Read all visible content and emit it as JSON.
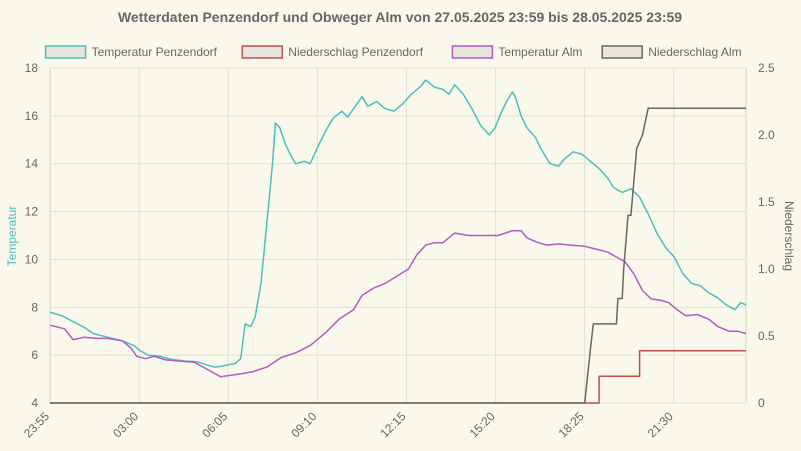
{
  "chart_data": {
    "type": "line",
    "title": "Wetterdaten Penzendorf und Obweger Alm von 27.05.2025 23:59 bis 28.05.2025 23:59",
    "y_left": {
      "label": "Temperatur",
      "range": [
        4,
        18
      ],
      "ticks": [
        "4",
        "6",
        "8",
        "10",
        "12",
        "14",
        "16",
        "18"
      ],
      "values": [
        4,
        6,
        8,
        10,
        12,
        14,
        16,
        18
      ],
      "color": "#4bc0c0"
    },
    "y_right": {
      "label": "Niederschlag",
      "range": [
        0,
        2.5
      ],
      "ticks": [
        "0",
        "0.5",
        "1.0",
        "1.5",
        "2.0",
        "2.5"
      ],
      "values": [
        0,
        0.5,
        1.0,
        1.5,
        2.0,
        2.5
      ],
      "color": "#666666"
    },
    "x_ticks": [
      {
        "label": "23:55",
        "hour": 0
      },
      {
        "label": "03:00",
        "hour": 3.083
      },
      {
        "label": "06:05",
        "hour": 6.167
      },
      {
        "label": "09:10",
        "hour": 9.25
      },
      {
        "label": "12:15",
        "hour": 12.333
      },
      {
        "label": "15:20",
        "hour": 15.417
      },
      {
        "label": "18:25",
        "hour": 18.5
      },
      {
        "label": "21:30",
        "hour": 21.583
      }
    ],
    "x_range_hours": [
      0,
      24.083
    ],
    "grid": true,
    "legend_position": "top",
    "series": [
      {
        "name": "Temperatur Penzendorf",
        "axis": "left",
        "color": "#4bc0c0",
        "fill": "#e6e6dc",
        "points": [
          [
            0.0,
            7.8
          ],
          [
            0.4,
            7.65
          ],
          [
            0.8,
            7.4
          ],
          [
            1.2,
            7.15
          ],
          [
            1.5,
            6.9
          ],
          [
            2.0,
            6.75
          ],
          [
            2.5,
            6.6
          ],
          [
            2.9,
            6.4
          ],
          [
            3.1,
            6.2
          ],
          [
            3.4,
            6.0
          ],
          [
            3.8,
            5.95
          ],
          [
            4.2,
            5.82
          ],
          [
            4.7,
            5.75
          ],
          [
            5.1,
            5.72
          ],
          [
            5.4,
            5.6
          ],
          [
            5.7,
            5.5
          ],
          [
            6.0,
            5.55
          ],
          [
            6.2,
            5.6
          ],
          [
            6.4,
            5.65
          ],
          [
            6.6,
            5.85
          ],
          [
            6.75,
            7.3
          ],
          [
            6.95,
            7.2
          ],
          [
            7.1,
            7.6
          ],
          [
            7.3,
            9.0
          ],
          [
            7.5,
            11.5
          ],
          [
            7.7,
            14.0
          ],
          [
            7.8,
            15.7
          ],
          [
            7.95,
            15.5
          ],
          [
            8.15,
            14.8
          ],
          [
            8.35,
            14.3
          ],
          [
            8.5,
            14.0
          ],
          [
            8.8,
            14.1
          ],
          [
            9.0,
            14.0
          ],
          [
            9.3,
            14.8
          ],
          [
            9.6,
            15.5
          ],
          [
            9.8,
            15.9
          ],
          [
            10.1,
            16.2
          ],
          [
            10.3,
            15.95
          ],
          [
            10.5,
            16.3
          ],
          [
            10.8,
            16.8
          ],
          [
            11.0,
            16.4
          ],
          [
            11.3,
            16.6
          ],
          [
            11.6,
            16.3
          ],
          [
            11.9,
            16.2
          ],
          [
            12.2,
            16.5
          ],
          [
            12.5,
            16.9
          ],
          [
            12.8,
            17.2
          ],
          [
            13.0,
            17.5
          ],
          [
            13.3,
            17.2
          ],
          [
            13.6,
            17.1
          ],
          [
            13.8,
            16.9
          ],
          [
            14.0,
            17.3
          ],
          [
            14.3,
            16.9
          ],
          [
            14.6,
            16.3
          ],
          [
            14.9,
            15.6
          ],
          [
            15.2,
            15.2
          ],
          [
            15.4,
            15.5
          ],
          [
            15.6,
            16.1
          ],
          [
            15.8,
            16.6
          ],
          [
            16.0,
            17.0
          ],
          [
            16.1,
            16.8
          ],
          [
            16.3,
            16.0
          ],
          [
            16.5,
            15.5
          ],
          [
            16.8,
            15.1
          ],
          [
            17.0,
            14.6
          ],
          [
            17.3,
            14.0
          ],
          [
            17.6,
            13.9
          ],
          [
            17.8,
            14.2
          ],
          [
            18.1,
            14.5
          ],
          [
            18.4,
            14.4
          ],
          [
            18.7,
            14.1
          ],
          [
            19.0,
            13.8
          ],
          [
            19.3,
            13.4
          ],
          [
            19.5,
            13.0
          ],
          [
            19.8,
            12.8
          ],
          [
            20.1,
            12.95
          ],
          [
            20.4,
            12.6
          ],
          [
            20.7,
            11.9
          ],
          [
            21.0,
            11.1
          ],
          [
            21.3,
            10.5
          ],
          [
            21.6,
            10.1
          ],
          [
            21.9,
            9.4
          ],
          [
            22.2,
            9.0
          ],
          [
            22.5,
            8.9
          ],
          [
            22.8,
            8.6
          ],
          [
            23.1,
            8.4
          ],
          [
            23.4,
            8.1
          ],
          [
            23.7,
            7.9
          ],
          [
            23.9,
            8.2
          ],
          [
            24.083,
            8.1
          ]
        ]
      },
      {
        "name": "Niederschlag Penzendorf",
        "axis": "right",
        "color": "#c0504d",
        "fill": "#e6e6dc",
        "points": [
          [
            0.0,
            0
          ],
          [
            19.0,
            0
          ],
          [
            19.0,
            0.2
          ],
          [
            20.4,
            0.2
          ],
          [
            20.4,
            0.39
          ],
          [
            24.083,
            0.39
          ]
        ]
      },
      {
        "name": "Temperatur Alm",
        "axis": "left",
        "color": "#b05cc6",
        "fill": "#e6e6dc",
        "points": [
          [
            0.0,
            7.25
          ],
          [
            0.5,
            7.1
          ],
          [
            0.8,
            6.65
          ],
          [
            1.2,
            6.75
          ],
          [
            1.6,
            6.7
          ],
          [
            2.0,
            6.7
          ],
          [
            2.5,
            6.6
          ],
          [
            2.8,
            6.3
          ],
          [
            3.0,
            5.95
          ],
          [
            3.3,
            5.85
          ],
          [
            3.6,
            5.95
          ],
          [
            4.0,
            5.8
          ],
          [
            4.5,
            5.75
          ],
          [
            5.0,
            5.7
          ],
          [
            5.3,
            5.5
          ],
          [
            5.6,
            5.3
          ],
          [
            5.9,
            5.1
          ],
          [
            6.2,
            5.15
          ],
          [
            6.5,
            5.2
          ],
          [
            7.0,
            5.3
          ],
          [
            7.5,
            5.5
          ],
          [
            8.0,
            5.9
          ],
          [
            8.5,
            6.1
          ],
          [
            9.0,
            6.4
          ],
          [
            9.5,
            6.9
          ],
          [
            10.0,
            7.5
          ],
          [
            10.5,
            7.9
          ],
          [
            10.8,
            8.5
          ],
          [
            11.2,
            8.8
          ],
          [
            11.6,
            9.0
          ],
          [
            12.0,
            9.3
          ],
          [
            12.4,
            9.6
          ],
          [
            12.7,
            10.2
          ],
          [
            13.0,
            10.6
          ],
          [
            13.3,
            10.7
          ],
          [
            13.6,
            10.7
          ],
          [
            14.0,
            11.1
          ],
          [
            14.5,
            11.0
          ],
          [
            15.0,
            11.0
          ],
          [
            15.5,
            11.0
          ],
          [
            16.0,
            11.2
          ],
          [
            16.3,
            11.2
          ],
          [
            16.5,
            10.9
          ],
          [
            16.9,
            10.7
          ],
          [
            17.2,
            10.6
          ],
          [
            17.6,
            10.65
          ],
          [
            18.0,
            10.6
          ],
          [
            18.5,
            10.55
          ],
          [
            19.0,
            10.4
          ],
          [
            19.3,
            10.3
          ],
          [
            19.6,
            10.1
          ],
          [
            19.9,
            9.9
          ],
          [
            20.2,
            9.4
          ],
          [
            20.5,
            8.7
          ],
          [
            20.8,
            8.35
          ],
          [
            21.1,
            8.3
          ],
          [
            21.4,
            8.2
          ],
          [
            21.7,
            7.9
          ],
          [
            22.0,
            7.65
          ],
          [
            22.4,
            7.7
          ],
          [
            22.8,
            7.5
          ],
          [
            23.1,
            7.2
          ],
          [
            23.5,
            7.0
          ],
          [
            23.8,
            7.0
          ],
          [
            24.083,
            6.9
          ]
        ]
      },
      {
        "name": "Niederschlag Alm",
        "axis": "right",
        "color": "#666666",
        "fill": "#e6e6dc",
        "points": [
          [
            0.0,
            0
          ],
          [
            18.5,
            0
          ],
          [
            18.7,
            0.4
          ],
          [
            18.8,
            0.59
          ],
          [
            19.4,
            0.59
          ],
          [
            19.4,
            0.59
          ],
          [
            19.6,
            0.59
          ],
          [
            19.65,
            0.78
          ],
          [
            19.8,
            0.78
          ],
          [
            19.85,
            1.0
          ],
          [
            20.0,
            1.4
          ],
          [
            20.1,
            1.4
          ],
          [
            20.3,
            1.9
          ],
          [
            20.5,
            2.0
          ],
          [
            20.7,
            2.2
          ],
          [
            24.083,
            2.2
          ]
        ]
      }
    ]
  }
}
